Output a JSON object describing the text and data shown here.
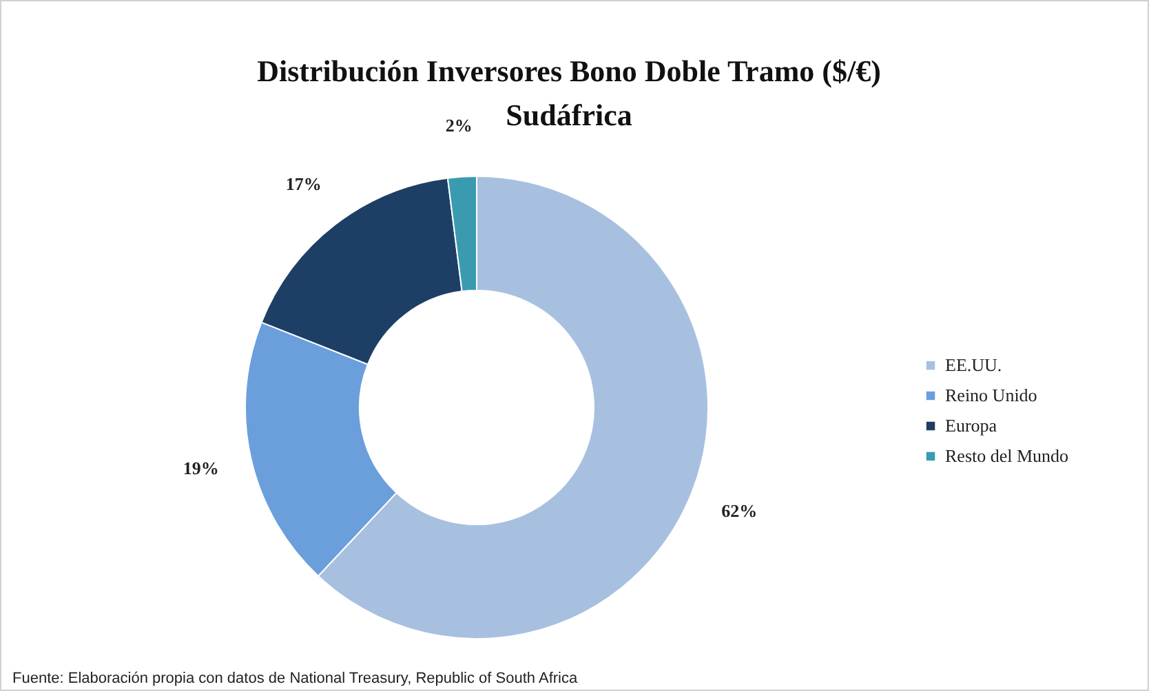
{
  "chart_data": {
    "type": "donut",
    "title": "Distribución Inversores Bono Doble Tramo ($/€)\nSudáfrica",
    "categories": [
      "EE.UU.",
      "Reino Unido",
      "Europa",
      "Resto del Mundo"
    ],
    "values": [
      62,
      19,
      17,
      2
    ],
    "colors": [
      "#a8c0e0",
      "#6a9fdc",
      "#1d3f66",
      "#3a9bb0"
    ],
    "value_labels": [
      "62%",
      "19%",
      "17%",
      "2%"
    ],
    "legend": "right",
    "annotations": [
      "Fuente: Elaboración propia con datos de National Treasury, Republic of South Africa"
    ]
  }
}
